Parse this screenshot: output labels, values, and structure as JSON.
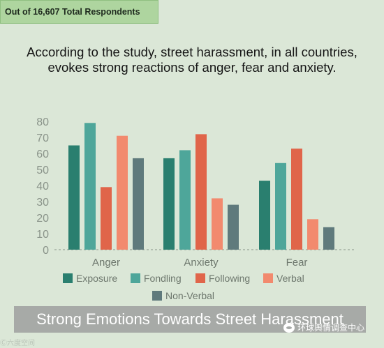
{
  "badge": {
    "label": "Out of 16,607 Total Respondents"
  },
  "headline": "According to the study, street harassment, in all countries, evokes strong reactions of anger, fear and anxiety.",
  "banner": {
    "title": "Strong Emotions Towards Street Harassment"
  },
  "watermark": {
    "left": "Ⓒ六度空间",
    "right": "环球舆情调查中心"
  },
  "chart_data": {
    "type": "bar",
    "categories": [
      "Anger",
      "Anxiety",
      "Fear"
    ],
    "series": [
      {
        "name": "Exposure",
        "color": "#2a7f6f",
        "values": [
          65,
          57,
          43
        ]
      },
      {
        "name": "Fondling",
        "color": "#4ea69a",
        "values": [
          79,
          62,
          54
        ]
      },
      {
        "name": "Following",
        "color": "#e0654a",
        "values": [
          39,
          72,
          63
        ]
      },
      {
        "name": "Verbal",
        "color": "#f28a6e",
        "values": [
          71,
          32,
          19
        ]
      },
      {
        "name": "Non-Verbal",
        "color": "#5f7a7c",
        "values": [
          57,
          28,
          14
        ]
      }
    ],
    "yticks": [
      0,
      10,
      20,
      30,
      40,
      50,
      60,
      70,
      80
    ],
    "ylim": [
      0,
      85
    ],
    "grid": false,
    "legend_position": "bottom"
  }
}
